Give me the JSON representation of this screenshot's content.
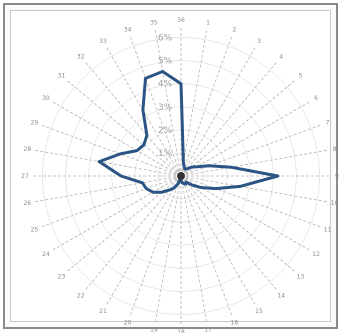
{
  "chart_data": {
    "type": "radar",
    "title": "",
    "categories": [
      "1",
      "2",
      "3",
      "4",
      "5",
      "6",
      "7",
      "8",
      "9",
      "10",
      "11",
      "12",
      "13",
      "14",
      "15",
      "16",
      "17",
      "18",
      "19",
      "20",
      "21",
      "22",
      "23",
      "24",
      "25",
      "26",
      "27",
      "28",
      "29",
      "30",
      "31",
      "32",
      "33",
      "34",
      "35",
      "36"
    ],
    "radial_ticks": [
      "1%",
      "2%",
      "3%",
      "4%",
      "5%",
      "6%"
    ],
    "rlim": [
      0,
      6.5
    ],
    "grid": true,
    "series": [
      {
        "color": "#2a5483",
        "values": [
          0.6,
          0.4,
          0.35,
          0.4,
          0.6,
          0.8,
          1.3,
          2.2,
          4.2,
          2.6,
          1.6,
          1.0,
          0.6,
          0.35,
          0.4,
          0.35,
          0.3,
          0.2,
          0.05,
          0.35,
          0.6,
          0.8,
          1.1,
          1.4,
          1.6,
          1.7,
          2.6,
          3.6,
          2.8,
          2.2,
          2.1,
          2.3,
          3.3,
          4.5,
          4.6,
          4.0
        ]
      }
    ]
  }
}
